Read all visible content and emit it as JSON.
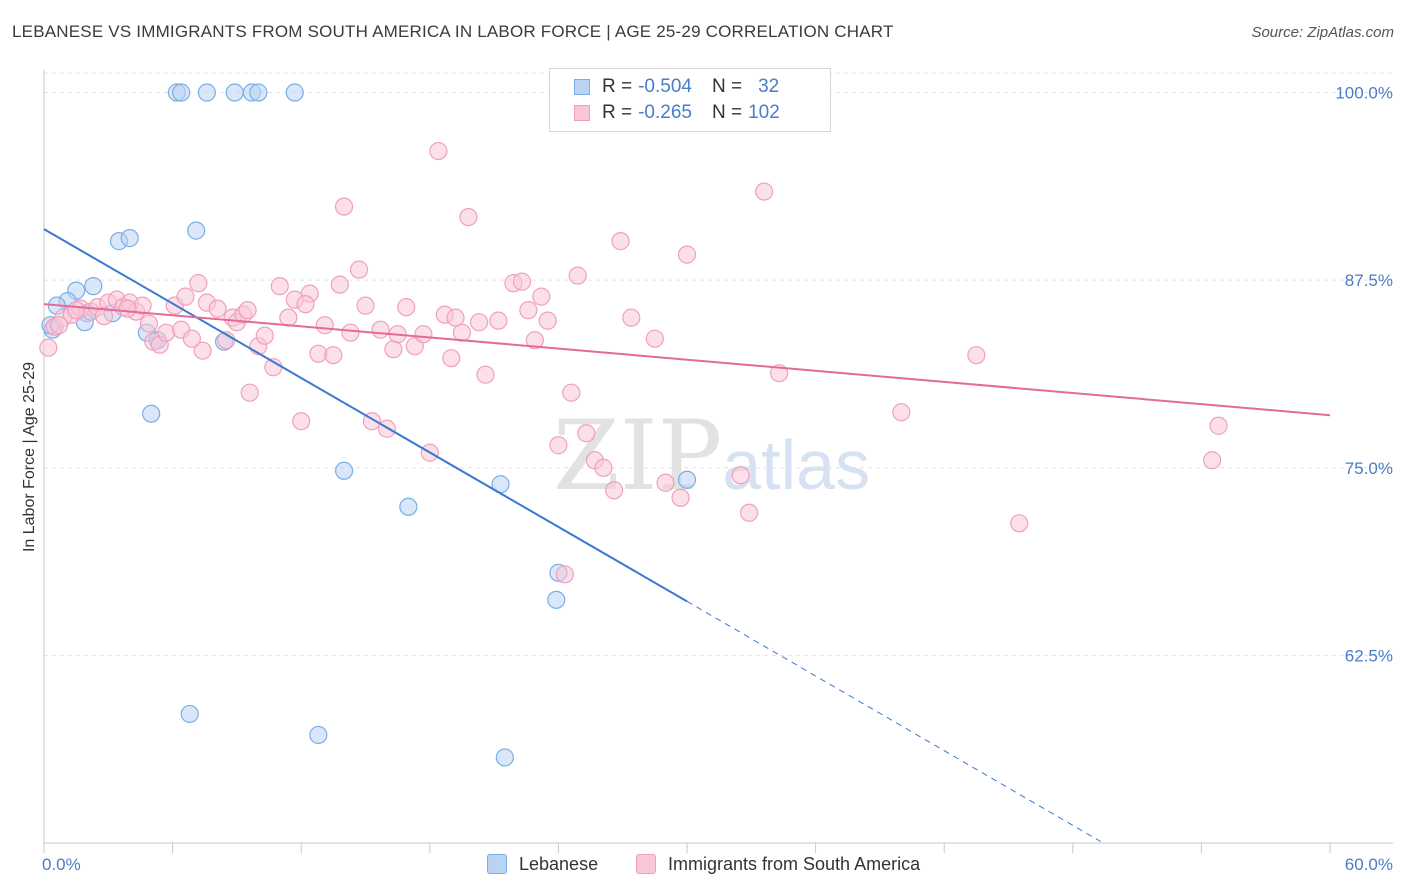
{
  "title": "LEBANESE VS IMMIGRANTS FROM SOUTH AMERICA IN LABOR FORCE | AGE 25-29 CORRELATION CHART",
  "source": "Source: ZipAtlas.com",
  "watermark": {
    "zip": "ZIP",
    "atlas": "atlas"
  },
  "legend_box": {
    "rows": [
      {
        "r_label": "R = ",
        "r_value": "-0.504",
        "n_label": "N = ",
        "n_value": "32"
      },
      {
        "r_label": "R = ",
        "r_value": "-0.265",
        "n_label": "N = ",
        "n_value": "102"
      }
    ]
  },
  "chart_data": {
    "type": "scatter",
    "title": "LEBANESE VS IMMIGRANTS FROM SOUTH AMERICA IN LABOR FORCE | AGE 25-29 CORRELATION CHART",
    "xlabel": "",
    "ylabel": "In Labor Force | Age 25-29",
    "xlim": [
      0,
      60
    ],
    "ylim": [
      50,
      101.5
    ],
    "x_tick_labels": [
      "0.0%",
      "60.0%"
    ],
    "y_ticks": [
      62.5,
      75.0,
      87.5,
      100.0
    ],
    "y_tick_labels": [
      "62.5%",
      "75.0%",
      "87.5%",
      "100.0%"
    ],
    "grid": "horizontal dashed",
    "legend_position": "bottom-center",
    "series": [
      {
        "name": "Lebanese",
        "color": "#7aaee8",
        "fill": "#b9d3f3",
        "line_color": "#3a78d0",
        "trend": {
          "x": [
            0,
            30,
            49.3
          ],
          "y": [
            90.9,
            66.1,
            50.1
          ],
          "solid_to": 30
        },
        "points": [
          [
            6.2,
            100
          ],
          [
            6.4,
            100
          ],
          [
            7.6,
            100
          ],
          [
            8.9,
            100
          ],
          [
            9.7,
            100
          ],
          [
            10.0,
            100
          ],
          [
            11.7,
            100
          ],
          [
            7.1,
            90.8
          ],
          [
            3.5,
            90.1
          ],
          [
            4.0,
            90.3
          ],
          [
            2.3,
            87.1
          ],
          [
            1.5,
            86.8
          ],
          [
            1.1,
            86.1
          ],
          [
            0.6,
            85.8
          ],
          [
            2.0,
            85.3
          ],
          [
            3.2,
            85.3
          ],
          [
            1.9,
            84.7
          ],
          [
            0.4,
            84.2
          ],
          [
            4.8,
            84.0
          ],
          [
            5.3,
            83.5
          ],
          [
            8.4,
            83.4
          ],
          [
            5.0,
            78.6
          ],
          [
            14.0,
            74.8
          ],
          [
            17.0,
            72.4
          ],
          [
            21.3,
            73.9
          ],
          [
            30.0,
            74.2
          ],
          [
            24.0,
            68.0
          ],
          [
            23.9,
            66.2
          ],
          [
            6.8,
            58.6
          ],
          [
            12.8,
            57.2
          ],
          [
            21.5,
            55.7
          ],
          [
            0.3,
            84.5
          ]
        ]
      },
      {
        "name": "Immigrants from South America",
        "color": "#f0a0bd",
        "fill": "#f9c6d7",
        "line_color": "#e46b96",
        "trend": {
          "x": [
            0,
            60
          ],
          "y": [
            85.9,
            78.5
          ]
        },
        "points": [
          [
            0.2,
            83.0
          ],
          [
            0.5,
            84.4
          ],
          [
            0.9,
            85.0
          ],
          [
            1.3,
            85.2
          ],
          [
            1.7,
            85.6
          ],
          [
            2.2,
            85.4
          ],
          [
            2.5,
            85.7
          ],
          [
            3.0,
            86.0
          ],
          [
            3.4,
            86.2
          ],
          [
            3.7,
            85.7
          ],
          [
            4.0,
            86.0
          ],
          [
            4.3,
            85.4
          ],
          [
            4.6,
            85.8
          ],
          [
            4.9,
            84.6
          ],
          [
            5.1,
            83.4
          ],
          [
            5.4,
            83.2
          ],
          [
            5.7,
            84.0
          ],
          [
            6.1,
            85.8
          ],
          [
            6.4,
            84.2
          ],
          [
            6.6,
            86.4
          ],
          [
            7.2,
            87.3
          ],
          [
            7.4,
            82.8
          ],
          [
            7.6,
            86.0
          ],
          [
            8.1,
            85.6
          ],
          [
            8.5,
            83.5
          ],
          [
            8.8,
            85.0
          ],
          [
            9.0,
            84.7
          ],
          [
            9.3,
            85.2
          ],
          [
            9.6,
            80.0
          ],
          [
            10.0,
            83.1
          ],
          [
            10.3,
            83.8
          ],
          [
            10.7,
            81.7
          ],
          [
            11.0,
            87.1
          ],
          [
            11.4,
            85.0
          ],
          [
            11.7,
            86.2
          ],
          [
            12.0,
            78.1
          ],
          [
            12.4,
            86.6
          ],
          [
            12.8,
            82.6
          ],
          [
            13.1,
            84.5
          ],
          [
            13.5,
            82.5
          ],
          [
            13.8,
            87.2
          ],
          [
            14.0,
            92.4
          ],
          [
            14.3,
            84.0
          ],
          [
            14.7,
            88.2
          ],
          [
            15.0,
            85.8
          ],
          [
            15.3,
            78.1
          ],
          [
            15.7,
            84.2
          ],
          [
            16.0,
            77.6
          ],
          [
            16.3,
            82.9
          ],
          [
            16.5,
            83.9
          ],
          [
            16.9,
            85.7
          ],
          [
            17.3,
            83.1
          ],
          [
            17.7,
            83.9
          ],
          [
            18.0,
            76.0
          ],
          [
            18.4,
            96.1
          ],
          [
            18.7,
            85.2
          ],
          [
            19.0,
            82.3
          ],
          [
            19.2,
            85.0
          ],
          [
            19.5,
            84.0
          ],
          [
            19.8,
            91.7
          ],
          [
            20.3,
            84.7
          ],
          [
            20.6,
            81.2
          ],
          [
            21.2,
            84.8
          ],
          [
            21.9,
            87.3
          ],
          [
            22.3,
            87.4
          ],
          [
            22.6,
            85.5
          ],
          [
            22.9,
            83.5
          ],
          [
            23.2,
            86.4
          ],
          [
            23.5,
            84.8
          ],
          [
            24.0,
            76.5
          ],
          [
            24.3,
            67.9
          ],
          [
            24.6,
            80.0
          ],
          [
            24.9,
            87.8
          ],
          [
            25.3,
            77.3
          ],
          [
            25.7,
            75.5
          ],
          [
            26.1,
            75.0
          ],
          [
            26.6,
            73.5
          ],
          [
            26.9,
            90.1
          ],
          [
            27.4,
            85.0
          ],
          [
            28.0,
            100
          ],
          [
            28.5,
            83.6
          ],
          [
            29.0,
            74.0
          ],
          [
            29.7,
            73.0
          ],
          [
            30.0,
            89.2
          ],
          [
            32.0,
            100
          ],
          [
            32.5,
            74.5
          ],
          [
            32.9,
            72.0
          ],
          [
            33.6,
            93.4
          ],
          [
            34.3,
            81.3
          ],
          [
            40.0,
            78.7
          ],
          [
            43.5,
            82.5
          ],
          [
            45.5,
            71.3
          ],
          [
            54.5,
            75.5
          ],
          [
            54.8,
            77.8
          ],
          [
            0.7,
            84.5
          ],
          [
            1.5,
            85.5
          ],
          [
            2.8,
            85.1
          ],
          [
            3.9,
            85.6
          ],
          [
            6.9,
            83.6
          ],
          [
            9.5,
            85.5
          ],
          [
            12.2,
            85.9
          ],
          [
            28.9,
            100
          ]
        ]
      }
    ]
  },
  "bottom_legend": [
    {
      "label": "Lebanese"
    },
    {
      "label": "Immigrants from South America"
    }
  ]
}
